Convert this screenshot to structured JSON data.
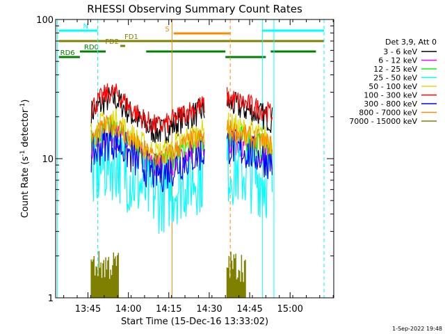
{
  "chart_data": {
    "type": "line",
    "title": "RHESSI Observing Summary Count Rates",
    "xlabel": "Start Time (15-Dec-16 13:33:02)",
    "ylabel": "Count Rate (s",
    "ylabel_exp": "-1",
    "ylabel_tail": " detector",
    "ylabel_close": ")",
    "yscale": "log",
    "ylim": [
      1,
      100
    ],
    "xlim_minutes": [
      13.55,
      15.27
    ],
    "xticks": [
      {
        "label": "13:45",
        "h": 13.75
      },
      {
        "label": "14:00",
        "h": 14.0
      },
      {
        "label": "14:15",
        "h": 14.25
      },
      {
        "label": "14:30",
        "h": 14.5
      },
      {
        "label": "14:45",
        "h": 14.75
      },
      {
        "label": "15:00",
        "h": 15.0
      }
    ],
    "yticks": [
      {
        "label": "1",
        "v": 1
      },
      {
        "label": "10",
        "v": 10
      },
      {
        "label": "100",
        "v": 100
      }
    ],
    "legend_title": "Det 3,9, Att 0",
    "legend_position": "right",
    "series": [
      {
        "name": "3 - 6 keV",
        "color": "#000000",
        "base": 20,
        "jitter": 0.1
      },
      {
        "name": "6 - 12 keV",
        "color": "#ff00ff",
        "base": 11,
        "jitter": 0.1
      },
      {
        "name": "12 - 25 keV",
        "color": "#00ff00",
        "base": 12,
        "jitter": 0.1
      },
      {
        "name": "25 - 50 keV",
        "color": "#00ffff",
        "base": 7,
        "jitter": 0.28
      },
      {
        "name": "50 - 100 keV",
        "color": "#dddd00",
        "base": 14,
        "jitter": 0.1
      },
      {
        "name": "100 - 300 keV",
        "color": "#ff0000",
        "base": 22,
        "jitter": 0.08
      },
      {
        "name": "300 - 800 keV",
        "color": "#0000ff",
        "base": 10,
        "jitter": 0.14
      },
      {
        "name": "800 - 7000 keV",
        "color": "#ff8800",
        "base": 13,
        "jitter": 0.08
      },
      {
        "name": "7000 - 15000 keV",
        "color": "#808000",
        "base": 0,
        "jitter": 0
      }
    ],
    "flags": [
      {
        "label": "N",
        "color": "#00ffff",
        "segments": [
          [
            13.57,
            13.81
          ],
          [
            14.83,
            15.21
          ]
        ]
      },
      {
        "label": "S",
        "color": "#ff8800",
        "segments": [
          [
            14.28,
            14.63
          ]
        ]
      },
      {
        "label": "FD1",
        "color": "#808000",
        "segments": [
          [
            13.57,
            15.21
          ]
        ]
      },
      {
        "label": "FD2",
        "color": "#808000",
        "segments": [
          [
            13.95,
            13.98
          ]
        ]
      },
      {
        "label": "RD0",
        "color": "#008000",
        "segments": [
          [
            13.7,
            13.86
          ],
          [
            14.11,
            14.6
          ],
          [
            14.88,
            15.16
          ]
        ]
      },
      {
        "label": "RD6",
        "color": "#008000",
        "segments": [
          [
            13.57,
            13.7
          ],
          [
            14.6,
            14.85
          ]
        ]
      }
    ],
    "observing_intervals": [
      [
        13.77,
        14.47
      ],
      [
        14.61,
        14.89
      ]
    ],
    "vertical_markers": [
      {
        "h": 13.56,
        "color": "#00ffff",
        "dashed": false
      },
      {
        "h": 13.81,
        "color": "#00ffff",
        "dashed": true
      },
      {
        "h": 14.27,
        "color": "#ff8800",
        "dashed": false
      },
      {
        "h": 14.63,
        "color": "#ff8800",
        "dashed": true
      },
      {
        "h": 14.83,
        "color": "#00ffff",
        "dashed": false
      },
      {
        "h": 14.9,
        "color": "#00ffff",
        "dashed": false
      },
      {
        "h": 15.21,
        "color": "#00ffff",
        "dashed": true
      }
    ]
  },
  "footer": {
    "timestamp": "1-Sep-2022 19:48"
  }
}
